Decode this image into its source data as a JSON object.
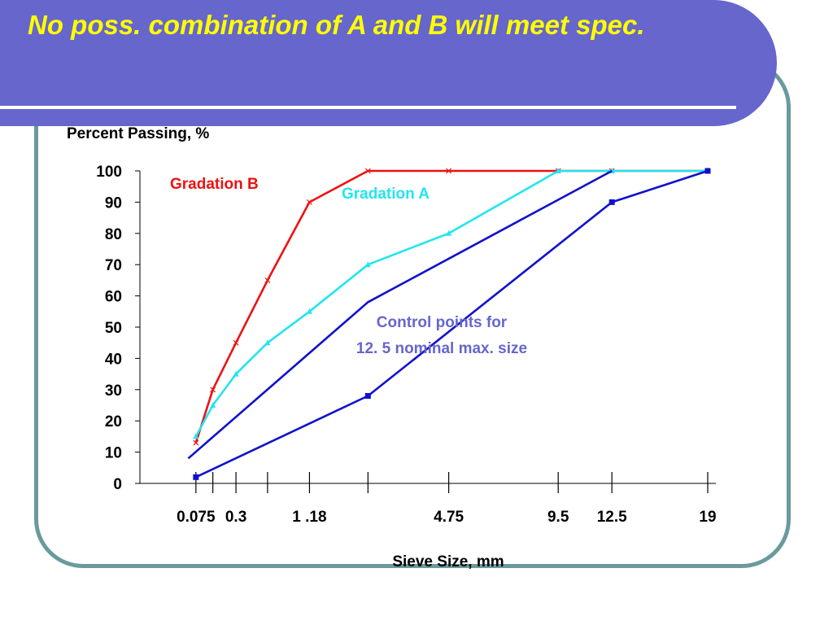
{
  "slide": {
    "title": "No poss. combination of A and B will meet spec.",
    "banner_color": "#6666cc",
    "title_color": "#ffff00",
    "frame_color": "#6a9a9c"
  },
  "chart_data": {
    "type": "line",
    "title": "",
    "ylabel": "Percent Passing, %",
    "xlabel": "Sieve Size, mm",
    "ylim": [
      0,
      100
    ],
    "y_ticks": [
      0,
      10,
      20,
      30,
      40,
      50,
      60,
      70,
      80,
      90,
      100
    ],
    "x_scale": "power 0.45",
    "x_tick_marks": [
      0.075,
      0.15,
      0.3,
      0.6,
      1.18,
      2.36,
      4.75,
      9.5,
      12.5,
      19
    ],
    "x_tick_labels": [
      {
        "value": 0.075,
        "label": "0.075"
      },
      {
        "value": 0.3,
        "label": "0.3"
      },
      {
        "value": 1.18,
        "label": "1 .18"
      },
      {
        "value": 4.75,
        "label": "4.75"
      },
      {
        "value": 9.5,
        "label": "9.5"
      },
      {
        "value": 12.5,
        "label": "12.5"
      },
      {
        "value": 19,
        "label": "19"
      }
    ],
    "grid": false,
    "legend": "none",
    "series": [
      {
        "name": "Gradation  B",
        "color": "#ee1111",
        "marker": "x",
        "points": [
          [
            0.075,
            13
          ],
          [
            0.15,
            30
          ],
          [
            0.3,
            45
          ],
          [
            0.6,
            65
          ],
          [
            1.18,
            90
          ],
          [
            2.36,
            100
          ],
          [
            4.75,
            100
          ],
          [
            9.5,
            100
          ],
          [
            12.5,
            100
          ],
          [
            19,
            100
          ]
        ]
      },
      {
        "name": "Gradation  A",
        "color": "#22e5ee",
        "marker": "triangle",
        "points": [
          [
            0.075,
            15
          ],
          [
            0.15,
            25
          ],
          [
            0.3,
            35
          ],
          [
            0.6,
            45
          ],
          [
            1.18,
            55
          ],
          [
            2.36,
            70
          ],
          [
            4.75,
            80
          ],
          [
            9.5,
            100
          ],
          [
            12.5,
            100
          ],
          [
            19,
            100
          ]
        ]
      },
      {
        "name": "Control points for 12. 5 nominal max. size",
        "color": "#1111cc",
        "marker": "none",
        "points": [
          [
            0.05,
            8
          ],
          [
            2.36,
            58
          ],
          [
            12.5,
            100
          ]
        ]
      },
      {
        "name": "Control points for 12. 5 nominal max. size",
        "color": "#1111cc",
        "marker": "square",
        "points": [
          [
            0.075,
            2
          ],
          [
            2.36,
            28
          ],
          [
            12.5,
            90
          ],
          [
            19,
            100
          ]
        ]
      }
    ],
    "annotations": [
      {
        "text": "Gradation  B",
        "color": "#ee1111"
      },
      {
        "text": "Gradation  A",
        "color": "#22e5ee"
      },
      {
        "text_lines": [
          "Control points for",
          "12. 5 nominal max. size"
        ],
        "color": "#6666cc"
      }
    ]
  }
}
